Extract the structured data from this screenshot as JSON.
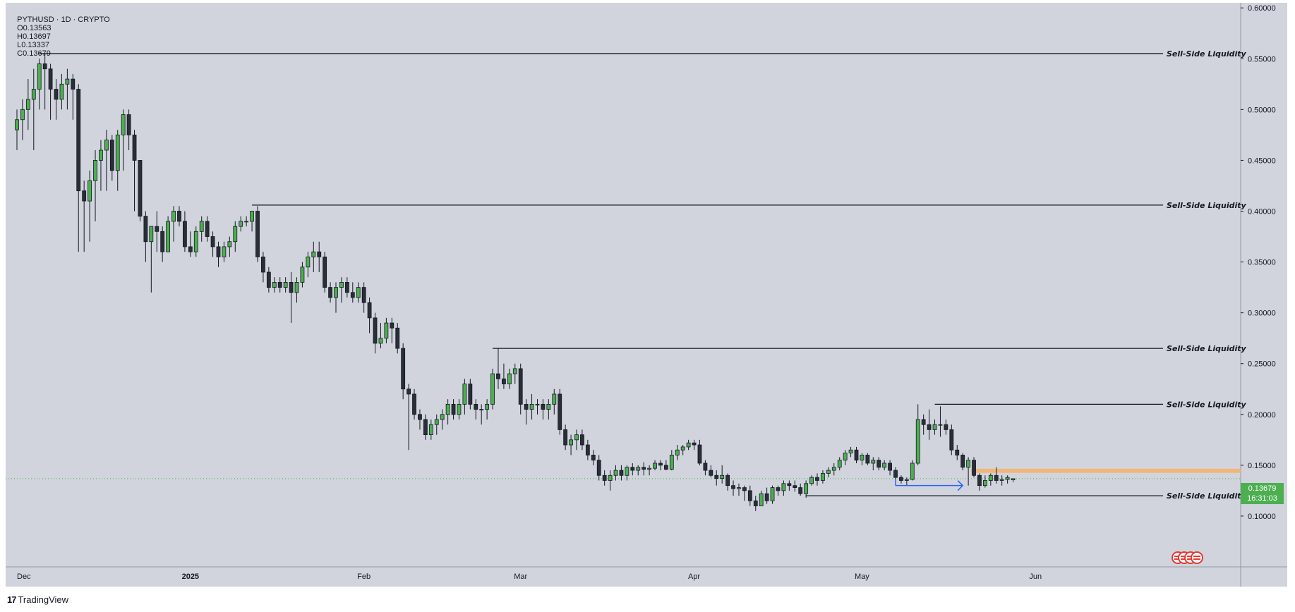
{
  "header": {
    "symbol": "PYTHUSD · 1D · CRYPTO",
    "open": "O0.13563",
    "high": "H0.13697",
    "low": "L0.13337",
    "close": "C0.13679"
  },
  "price_tag": {
    "price": "0.13679",
    "countdown": "16:31:03"
  },
  "footer": {
    "brand": "TradingView",
    "logo": "17"
  },
  "colors": {
    "background": "#d1d4dc",
    "up": "#4caf50",
    "down": "#2a2e39",
    "outline": "#131722",
    "level_line": "#131722",
    "arrow": "#2962ff",
    "zone": "#f4b26a",
    "current_price": "#4caf50"
  },
  "chart_data": {
    "type": "candlestick",
    "ylim": [
      0.05,
      0.605
    ],
    "y_ticks": [
      "0.60000",
      "0.55000",
      "0.50000",
      "0.45000",
      "0.40000",
      "0.35000",
      "0.30000",
      "0.25000",
      "0.20000",
      "0.15000",
      "0.10000"
    ],
    "x_ticks": [
      {
        "label": "Dec",
        "day": 0
      },
      {
        "label": "2025",
        "day": 31
      },
      {
        "label": "Feb",
        "day": 62
      },
      {
        "label": "Mar",
        "day": 90
      },
      {
        "label": "Apr",
        "day": 121
      },
      {
        "label": "May",
        "day": 151
      },
      {
        "label": "Jun",
        "day": 182
      }
    ],
    "first_date": "2024-11-30",
    "candles": [
      [
        0.48,
        0.5,
        0.46,
        0.49
      ],
      [
        0.49,
        0.51,
        0.47,
        0.5
      ],
      [
        0.5,
        0.53,
        0.48,
        0.51
      ],
      [
        0.51,
        0.54,
        0.46,
        0.52
      ],
      [
        0.52,
        0.55,
        0.5,
        0.545
      ],
      [
        0.545,
        0.555,
        0.5,
        0.54
      ],
      [
        0.54,
        0.545,
        0.49,
        0.52
      ],
      [
        0.52,
        0.53,
        0.49,
        0.51
      ],
      [
        0.51,
        0.535,
        0.5,
        0.525
      ],
      [
        0.525,
        0.54,
        0.5,
        0.53
      ],
      [
        0.53,
        0.535,
        0.49,
        0.52
      ],
      [
        0.52,
        0.525,
        0.36,
        0.42
      ],
      [
        0.42,
        0.43,
        0.36,
        0.41
      ],
      [
        0.41,
        0.44,
        0.37,
        0.43
      ],
      [
        0.43,
        0.46,
        0.39,
        0.45
      ],
      [
        0.45,
        0.47,
        0.42,
        0.46
      ],
      [
        0.46,
        0.48,
        0.42,
        0.47
      ],
      [
        0.47,
        0.475,
        0.43,
        0.44
      ],
      [
        0.44,
        0.48,
        0.42,
        0.475
      ],
      [
        0.475,
        0.5,
        0.44,
        0.495
      ],
      [
        0.495,
        0.5,
        0.46,
        0.475
      ],
      [
        0.475,
        0.48,
        0.4,
        0.45
      ],
      [
        0.45,
        0.45,
        0.39,
        0.395
      ],
      [
        0.395,
        0.4,
        0.35,
        0.37
      ],
      [
        0.37,
        0.385,
        0.32,
        0.385
      ],
      [
        0.385,
        0.4,
        0.36,
        0.38
      ],
      [
        0.38,
        0.385,
        0.35,
        0.36
      ],
      [
        0.36,
        0.395,
        0.36,
        0.39
      ],
      [
        0.39,
        0.405,
        0.37,
        0.4
      ],
      [
        0.4,
        0.405,
        0.385,
        0.39
      ],
      [
        0.39,
        0.4,
        0.36,
        0.365
      ],
      [
        0.365,
        0.38,
        0.355,
        0.36
      ],
      [
        0.36,
        0.385,
        0.355,
        0.38
      ],
      [
        0.38,
        0.395,
        0.37,
        0.39
      ],
      [
        0.39,
        0.395,
        0.37,
        0.375
      ],
      [
        0.375,
        0.38,
        0.355,
        0.365
      ],
      [
        0.365,
        0.37,
        0.345,
        0.355
      ],
      [
        0.355,
        0.37,
        0.35,
        0.365
      ],
      [
        0.365,
        0.375,
        0.355,
        0.37
      ],
      [
        0.37,
        0.39,
        0.36,
        0.385
      ],
      [
        0.385,
        0.395,
        0.38,
        0.39
      ],
      [
        0.39,
        0.395,
        0.385,
        0.39
      ],
      [
        0.39,
        0.4,
        0.38,
        0.4
      ],
      [
        0.4,
        0.405,
        0.35,
        0.355
      ],
      [
        0.355,
        0.36,
        0.33,
        0.34
      ],
      [
        0.34,
        0.345,
        0.32,
        0.325
      ],
      [
        0.325,
        0.335,
        0.32,
        0.33
      ],
      [
        0.33,
        0.335,
        0.32,
        0.325
      ],
      [
        0.325,
        0.335,
        0.32,
        0.33
      ],
      [
        0.33,
        0.34,
        0.29,
        0.32
      ],
      [
        0.32,
        0.335,
        0.31,
        0.33
      ],
      [
        0.33,
        0.35,
        0.325,
        0.345
      ],
      [
        0.345,
        0.36,
        0.335,
        0.355
      ],
      [
        0.355,
        0.37,
        0.34,
        0.36
      ],
      [
        0.36,
        0.37,
        0.34,
        0.355
      ],
      [
        0.355,
        0.36,
        0.32,
        0.325
      ],
      [
        0.325,
        0.33,
        0.31,
        0.315
      ],
      [
        0.315,
        0.33,
        0.3,
        0.325
      ],
      [
        0.325,
        0.335,
        0.31,
        0.33
      ],
      [
        0.33,
        0.335,
        0.315,
        0.32
      ],
      [
        0.32,
        0.33,
        0.31,
        0.315
      ],
      [
        0.315,
        0.33,
        0.31,
        0.325
      ],
      [
        0.325,
        0.33,
        0.3,
        0.31
      ],
      [
        0.31,
        0.315,
        0.28,
        0.295
      ],
      [
        0.295,
        0.3,
        0.26,
        0.27
      ],
      [
        0.27,
        0.29,
        0.265,
        0.275
      ],
      [
        0.275,
        0.295,
        0.27,
        0.29
      ],
      [
        0.29,
        0.295,
        0.27,
        0.285
      ],
      [
        0.285,
        0.29,
        0.26,
        0.265
      ],
      [
        0.265,
        0.27,
        0.215,
        0.225
      ],
      [
        0.225,
        0.23,
        0.165,
        0.22
      ],
      [
        0.22,
        0.225,
        0.195,
        0.2
      ],
      [
        0.2,
        0.205,
        0.185,
        0.195
      ],
      [
        0.195,
        0.2,
        0.175,
        0.18
      ],
      [
        0.18,
        0.195,
        0.175,
        0.19
      ],
      [
        0.19,
        0.2,
        0.18,
        0.195
      ],
      [
        0.195,
        0.205,
        0.185,
        0.2
      ],
      [
        0.2,
        0.215,
        0.19,
        0.21
      ],
      [
        0.21,
        0.215,
        0.195,
        0.2
      ],
      [
        0.2,
        0.215,
        0.195,
        0.21
      ],
      [
        0.21,
        0.235,
        0.2,
        0.23
      ],
      [
        0.23,
        0.235,
        0.205,
        0.21
      ],
      [
        0.21,
        0.215,
        0.195,
        0.205
      ],
      [
        0.205,
        0.21,
        0.19,
        0.205
      ],
      [
        0.205,
        0.215,
        0.195,
        0.21
      ],
      [
        0.21,
        0.245,
        0.205,
        0.24
      ],
      [
        0.24,
        0.265,
        0.225,
        0.235
      ],
      [
        0.235,
        0.25,
        0.225,
        0.23
      ],
      [
        0.23,
        0.245,
        0.225,
        0.24
      ],
      [
        0.24,
        0.25,
        0.23,
        0.245
      ],
      [
        0.245,
        0.25,
        0.2,
        0.21
      ],
      [
        0.21,
        0.215,
        0.19,
        0.205
      ],
      [
        0.205,
        0.22,
        0.195,
        0.21
      ],
      [
        0.21,
        0.215,
        0.2,
        0.21
      ],
      [
        0.21,
        0.215,
        0.195,
        0.205
      ],
      [
        0.205,
        0.215,
        0.195,
        0.21
      ],
      [
        0.21,
        0.225,
        0.2,
        0.22
      ],
      [
        0.22,
        0.225,
        0.18,
        0.185
      ],
      [
        0.185,
        0.19,
        0.165,
        0.17
      ],
      [
        0.17,
        0.18,
        0.16,
        0.175
      ],
      [
        0.175,
        0.185,
        0.165,
        0.18
      ],
      [
        0.18,
        0.185,
        0.165,
        0.17
      ],
      [
        0.17,
        0.175,
        0.155,
        0.16
      ],
      [
        0.16,
        0.165,
        0.15,
        0.155
      ],
      [
        0.155,
        0.16,
        0.135,
        0.14
      ],
      [
        0.14,
        0.145,
        0.13,
        0.135
      ],
      [
        0.135,
        0.145,
        0.125,
        0.14
      ],
      [
        0.14,
        0.15,
        0.135,
        0.145
      ],
      [
        0.145,
        0.15,
        0.135,
        0.14
      ],
      [
        0.14,
        0.15,
        0.135,
        0.148
      ],
      [
        0.148,
        0.152,
        0.14,
        0.145
      ],
      [
        0.145,
        0.15,
        0.14,
        0.148
      ],
      [
        0.148,
        0.153,
        0.14,
        0.146
      ],
      [
        0.146,
        0.15,
        0.14,
        0.147
      ],
      [
        0.147,
        0.155,
        0.145,
        0.152
      ],
      [
        0.152,
        0.155,
        0.145,
        0.15
      ],
      [
        0.15,
        0.155,
        0.145,
        0.146
      ],
      [
        0.146,
        0.165,
        0.145,
        0.16
      ],
      [
        0.16,
        0.17,
        0.155,
        0.165
      ],
      [
        0.165,
        0.17,
        0.16,
        0.168
      ],
      [
        0.168,
        0.175,
        0.165,
        0.172
      ],
      [
        0.172,
        0.175,
        0.165,
        0.17
      ],
      [
        0.17,
        0.175,
        0.15,
        0.152
      ],
      [
        0.152,
        0.155,
        0.14,
        0.145
      ],
      [
        0.145,
        0.15,
        0.138,
        0.14
      ],
      [
        0.14,
        0.145,
        0.13,
        0.137
      ],
      [
        0.137,
        0.15,
        0.132,
        0.14
      ],
      [
        0.14,
        0.142,
        0.125,
        0.13
      ],
      [
        0.13,
        0.135,
        0.12,
        0.127
      ],
      [
        0.127,
        0.132,
        0.12,
        0.128
      ],
      [
        0.128,
        0.13,
        0.115,
        0.125
      ],
      [
        0.125,
        0.13,
        0.11,
        0.115
      ],
      [
        0.115,
        0.12,
        0.105,
        0.11
      ],
      [
        0.11,
        0.125,
        0.11,
        0.122
      ],
      [
        0.122,
        0.128,
        0.112,
        0.115
      ],
      [
        0.115,
        0.13,
        0.112,
        0.128
      ],
      [
        0.128,
        0.13,
        0.12,
        0.125
      ],
      [
        0.125,
        0.135,
        0.12,
        0.132
      ],
      [
        0.132,
        0.135,
        0.125,
        0.13
      ],
      [
        0.13,
        0.135,
        0.124,
        0.128
      ],
      [
        0.128,
        0.132,
        0.12,
        0.122
      ],
      [
        0.122,
        0.135,
        0.118,
        0.132
      ],
      [
        0.132,
        0.14,
        0.13,
        0.138
      ],
      [
        0.138,
        0.142,
        0.13,
        0.135
      ],
      [
        0.135,
        0.145,
        0.132,
        0.142
      ],
      [
        0.142,
        0.148,
        0.138,
        0.145
      ],
      [
        0.145,
        0.152,
        0.14,
        0.148
      ],
      [
        0.148,
        0.158,
        0.145,
        0.155
      ],
      [
        0.155,
        0.165,
        0.15,
        0.162
      ],
      [
        0.162,
        0.168,
        0.158,
        0.165
      ],
      [
        0.165,
        0.168,
        0.152,
        0.155
      ],
      [
        0.155,
        0.162,
        0.15,
        0.16
      ],
      [
        0.16,
        0.162,
        0.15,
        0.152
      ],
      [
        0.152,
        0.158,
        0.145,
        0.155
      ],
      [
        0.155,
        0.158,
        0.145,
        0.148
      ],
      [
        0.148,
        0.155,
        0.145,
        0.152
      ],
      [
        0.152,
        0.155,
        0.14,
        0.145
      ],
      [
        0.145,
        0.148,
        0.135,
        0.138
      ],
      [
        0.138,
        0.14,
        0.132,
        0.135
      ],
      [
        0.135,
        0.138,
        0.13,
        0.136
      ],
      [
        0.136,
        0.155,
        0.135,
        0.152
      ],
      [
        0.152,
        0.21,
        0.15,
        0.195
      ],
      [
        0.195,
        0.2,
        0.18,
        0.19
      ],
      [
        0.19,
        0.205,
        0.175,
        0.185
      ],
      [
        0.185,
        0.195,
        0.18,
        0.19
      ],
      [
        0.19,
        0.208,
        0.178,
        0.19
      ],
      [
        0.19,
        0.195,
        0.18,
        0.185
      ],
      [
        0.185,
        0.19,
        0.16,
        0.165
      ],
      [
        0.165,
        0.17,
        0.155,
        0.16
      ],
      [
        0.16,
        0.162,
        0.145,
        0.148
      ],
      [
        0.148,
        0.158,
        0.13,
        0.155
      ],
      [
        0.155,
        0.158,
        0.138,
        0.14
      ],
      [
        0.14,
        0.142,
        0.125,
        0.13
      ],
      [
        0.13,
        0.14,
        0.128,
        0.135
      ],
      [
        0.135,
        0.142,
        0.13,
        0.14
      ],
      [
        0.14,
        0.148,
        0.132,
        0.135
      ],
      [
        0.135,
        0.14,
        0.13,
        0.136
      ],
      [
        0.136,
        0.14,
        0.132,
        0.138
      ],
      [
        0.13563,
        0.13697,
        0.13337,
        0.13679
      ]
    ],
    "levels": [
      {
        "label": "Sell-Side Liquidity",
        "price": 0.555,
        "start_day": 4
      },
      {
        "label": "Sell-Side Liquidity",
        "price": 0.406,
        "start_day": 42
      },
      {
        "label": "Sell-Side Liquidity",
        "price": 0.265,
        "start_day": 85
      },
      {
        "label": "Sell-Side Liquidity",
        "price": 0.21,
        "start_day": 164
      },
      {
        "label": "Sell-Side Liquidity",
        "price": 0.12,
        "start_day": 141
      }
    ],
    "current_price": 0.13679
  }
}
